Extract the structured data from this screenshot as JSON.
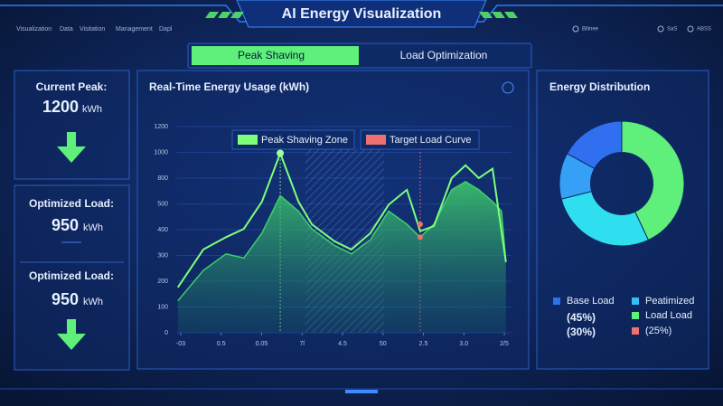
{
  "header": {
    "title": "AI Energy Visualization",
    "nav": [
      "Visualization",
      "Data",
      "Visitation",
      "Management",
      "Dapl"
    ],
    "status": [
      "Bllinee",
      "SaS",
      "ABSS"
    ]
  },
  "tabs": [
    {
      "label": "Peak Shaving",
      "active": true
    },
    {
      "label": "Load Optimization",
      "active": false
    }
  ],
  "cards": [
    {
      "label": "Current Peak:",
      "value": 1200,
      "unit": "kWh"
    },
    {
      "label": "Optimized Load:",
      "value": 950,
      "unit": "kWh"
    },
    {
      "label": "Optimized Load:",
      "value": 950,
      "unit": "kWh"
    }
  ],
  "chart_data": [
    {
      "type": "line",
      "title": "Real-Time Energy Usage (kWh)",
      "xlim": [
        -0.1,
        8.1
      ],
      "xticks": [
        {
          "value": 0,
          "label": "-03"
        },
        {
          "value": 1,
          "label": "0.5"
        },
        {
          "value": 2,
          "label": "0.05"
        },
        {
          "value": 3,
          "label": "7l"
        },
        {
          "value": 4,
          "label": "4.5"
        },
        {
          "value": 5,
          "label": "50"
        },
        {
          "value": 6,
          "label": "2.5"
        },
        {
          "value": 7,
          "label": "3.0"
        },
        {
          "value": 8,
          "label": "2/5"
        }
      ],
      "ylim": [
        0,
        1200
      ],
      "yticks": [
        0,
        100,
        200,
        300,
        400,
        500,
        800,
        1000,
        1200
      ],
      "y_scale": "tick-spaced",
      "grid": true,
      "series": [
        {
          "name": "Peak Shaving Zone",
          "color": "#7dff7a",
          "x": [
            -0.07,
            0.56,
            1.12,
            1.56,
            2.01,
            2.46,
            2.91,
            3.24,
            3.8,
            4.22,
            4.69,
            5.14,
            5.59,
            5.92,
            6.26,
            6.7,
            7.04,
            7.37,
            7.71,
            8.04
          ],
          "values": [
            176,
            323,
            371,
            403,
            527,
            993,
            527,
            421,
            355,
            323,
            387,
            497,
            664,
            394,
            414,
            800,
            900,
            800,
            873,
            274
          ]
        },
        {
          "name": "Target Load Curve",
          "color": "#f07070",
          "area_color": "#3fcf6a",
          "x": [
            -0.07,
            0.56,
            1.12,
            1.56,
            2.01,
            2.46,
            2.91,
            3.24,
            3.8,
            4.22,
            4.69,
            5.14,
            5.59,
            5.92,
            6.26,
            6.7,
            7.04,
            7.37,
            7.71,
            7.93,
            8.04
          ],
          "values": [
            124,
            242,
            306,
            290,
            387,
            595,
            472,
            403,
            339,
            306,
            361,
            472,
            421,
            371,
            421,
            664,
            759,
            664,
            527,
            472,
            274
          ]
        }
      ],
      "shaded_zone": [
        3.08,
        5.03
      ],
      "vlines": [
        2.46,
        5.92
      ],
      "markers": [
        {
          "x": 2.46,
          "value": 993,
          "color": "#9dff9a"
        },
        {
          "x": 5.92,
          "value": 421,
          "color": "#f07070"
        },
        {
          "x": 5.92,
          "value": 371,
          "color": "#f07070"
        }
      ]
    },
    {
      "type": "pie",
      "title": "Energy Distribution",
      "values": [
        43,
        28,
        12,
        17
      ],
      "colors": [
        "#5ef07a",
        "#2fdff0",
        "#35a0f5",
        "#2f6ff0"
      ],
      "hole": 0.5,
      "legend": [
        {
          "label": "Base Load",
          "color": "#2f6ff0"
        },
        {
          "label": "Peatimized",
          "color": "#35c0f5"
        },
        {
          "label": "Load Load",
          "color": "#5ef07a"
        },
        {
          "label": "(25%)",
          "color": "#f07070"
        }
      ],
      "notes": [
        "(45%)",
        "(30%)"
      ]
    }
  ]
}
